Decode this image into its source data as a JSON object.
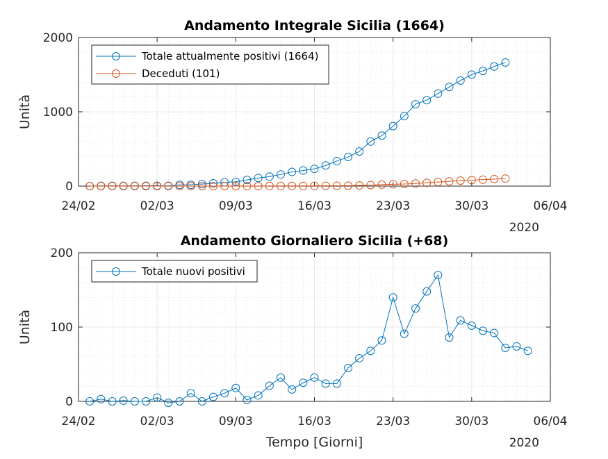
{
  "colors": {
    "series_blue": "#0072BD",
    "series_orange": "#D95319",
    "axis": "#262626",
    "grid": "#d0d0d0"
  },
  "chart_data": [
    {
      "type": "line",
      "title": "Andamento Integrale Sicilia (1664)",
      "xlabel": "",
      "ylabel": "Unità",
      "x_start": "2020-02-25",
      "xlim": [
        "2020-02-24",
        "2020-04-06"
      ],
      "ylim": [
        0,
        2000
      ],
      "xticks": [
        "24/02",
        "02/03",
        "09/03",
        "16/03",
        "23/03",
        "30/03",
        "06/04"
      ],
      "yticks": [
        "0",
        "1000",
        "2000"
      ],
      "year_label": "2020",
      "grid": true,
      "legend": "top-left",
      "series": [
        {
          "name": "Totale attualmente positivi (1664)",
          "color": "#0072BD",
          "values": [
            0,
            3,
            3,
            4,
            4,
            5,
            5,
            5,
            17,
            17,
            27,
            37,
            52,
            57,
            83,
            109,
            128,
            156,
            191,
            210,
            232,
            278,
            337,
            392,
            466,
            600,
            680,
            807,
            941,
            1102,
            1157,
            1245,
            1334,
            1421,
            1501,
            1550,
            1610,
            1664
          ]
        },
        {
          "name": "Deceduti (101)",
          "color": "#D95319",
          "values": [
            0,
            0,
            0,
            0,
            0,
            0,
            0,
            0,
            0,
            0,
            0,
            0,
            0,
            0,
            1,
            1,
            2,
            2,
            2,
            2,
            3,
            4,
            5,
            6,
            9,
            14,
            20,
            25,
            28,
            35,
            45,
            55,
            64,
            74,
            80,
            86,
            95,
            101
          ]
        }
      ]
    },
    {
      "type": "line",
      "title": "Andamento Giornaliero Sicilia (+68)",
      "xlabel": "Tempo [Giorni]",
      "ylabel": "Unità",
      "x_start": "2020-02-25",
      "xlim": [
        "2020-02-24",
        "2020-04-06"
      ],
      "ylim": [
        0,
        200
      ],
      "xticks": [
        "24/02",
        "02/03",
        "09/03",
        "16/03",
        "23/03",
        "30/03",
        "06/04"
      ],
      "yticks": [
        "0",
        "100",
        "200"
      ],
      "year_label": "2020",
      "grid": true,
      "legend": "top-left",
      "series": [
        {
          "name": "Totale nuovi positivi",
          "color": "#0072BD",
          "values": [
            0,
            3,
            0,
            1,
            0,
            0,
            5,
            -2,
            0,
            11,
            0,
            6,
            11,
            18,
            2,
            8,
            21,
            32,
            16,
            25,
            32,
            24,
            24,
            45,
            58,
            68,
            82,
            140,
            91,
            125,
            148,
            170,
            86,
            109,
            102,
            95,
            92,
            72,
            74,
            68
          ]
        }
      ]
    }
  ]
}
